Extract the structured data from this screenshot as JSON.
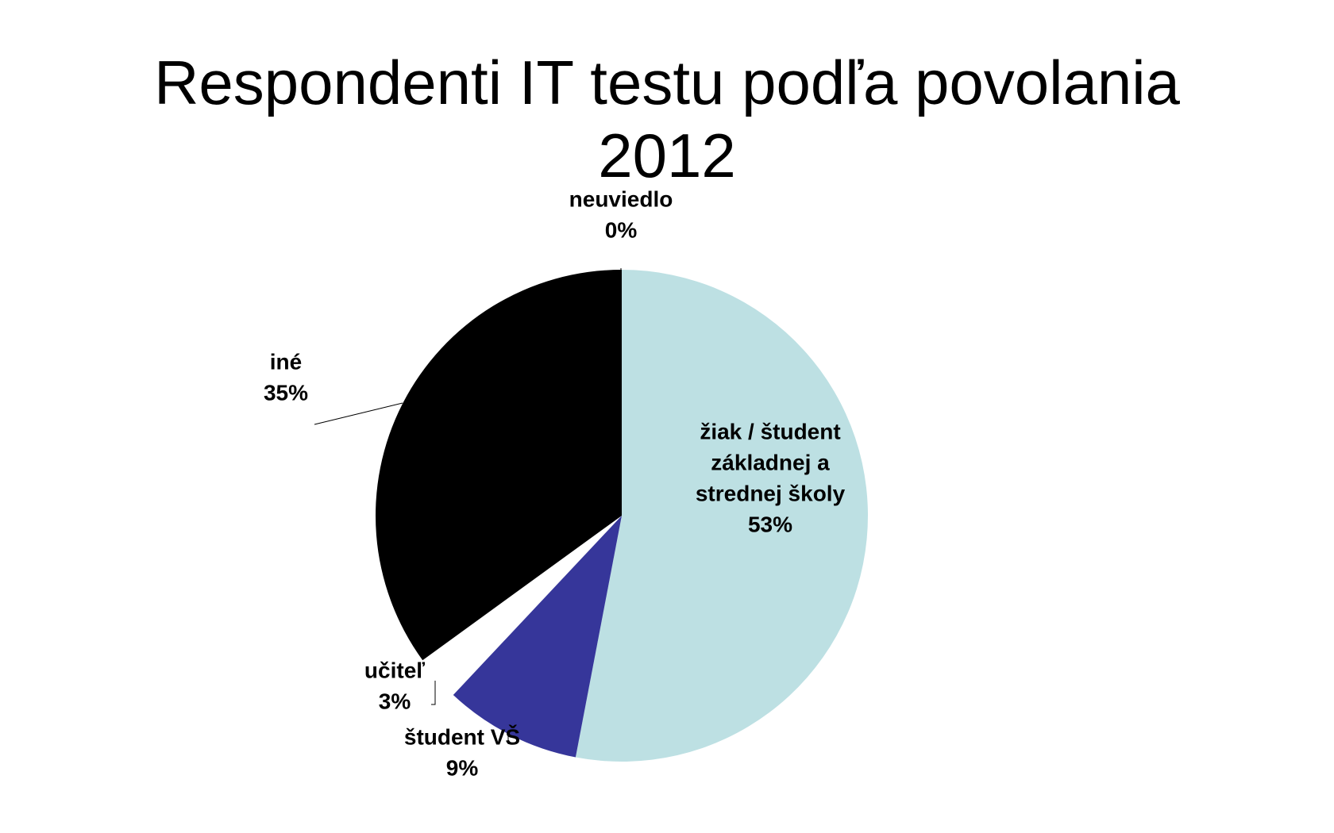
{
  "chart_data": {
    "type": "pie",
    "title_lines": [
      "Respondenti IT testu podľa povolania",
      "2012"
    ],
    "slices": [
      {
        "name": "žiak / študent základnej a strednej školy",
        "label_lines": [
          "žiak / študent",
          "základnej a",
          "strednej školy"
        ],
        "value": 53,
        "value_label": "53%",
        "color": "#bde0e3"
      },
      {
        "name": "študent VŠ",
        "label_lines": [
          "študent VŠ"
        ],
        "value": 9,
        "value_label": "9%",
        "color": "#36369a"
      },
      {
        "name": "učiteľ",
        "label_lines": [
          "učiteľ"
        ],
        "value": 3,
        "value_label": "3%",
        "color": "#ffffff"
      },
      {
        "name": "iné",
        "label_lines": [
          "iné"
        ],
        "value": 35,
        "value_label": "35%",
        "color": "#000000"
      },
      {
        "name": "neuviedlo",
        "label_lines": [
          "neuviedlo"
        ],
        "value": 0,
        "value_label": "0%",
        "color": "#ffffff"
      }
    ],
    "start_angle": "12 o'clock",
    "direction": "clockwise",
    "legend": "none"
  }
}
